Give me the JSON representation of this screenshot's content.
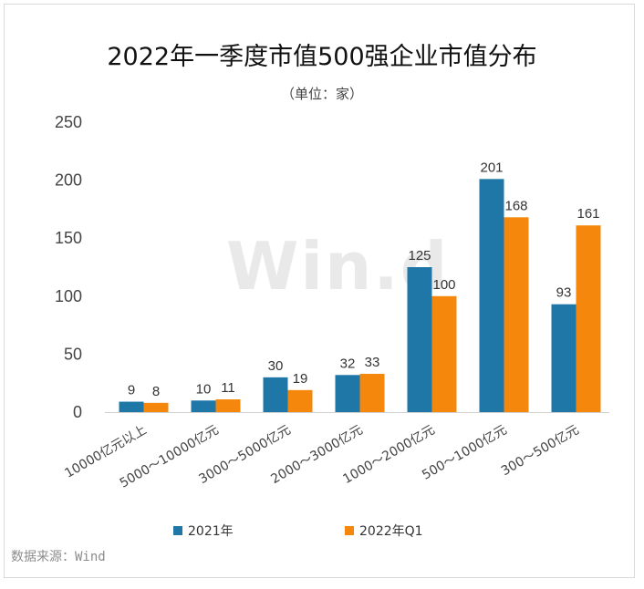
{
  "chart_data": {
    "type": "bar",
    "title": "2022年一季度市值500强企业市值分布",
    "subtitle": "（单位：家）",
    "categories": [
      "10000亿元以上",
      "5000～10000亿元",
      "3000～5000亿元",
      "2000～3000亿元",
      "1000～2000亿元",
      "500～1000亿元",
      "300～500亿元"
    ],
    "series": [
      {
        "name": "2021年",
        "values": [
          9,
          10,
          30,
          32,
          125,
          201,
          93
        ],
        "color": "#1f77a8"
      },
      {
        "name": "2022年Q1",
        "values": [
          8,
          11,
          19,
          33,
          100,
          168,
          161
        ],
        "color": "#f5870d"
      }
    ],
    "ylim": [
      0,
      250
    ],
    "yticks": [
      0,
      50,
      100,
      150,
      200,
      250
    ],
    "grid": false,
    "legend_position": "bottom"
  },
  "source": "数据来源：Wind",
  "watermark": "Win.d"
}
